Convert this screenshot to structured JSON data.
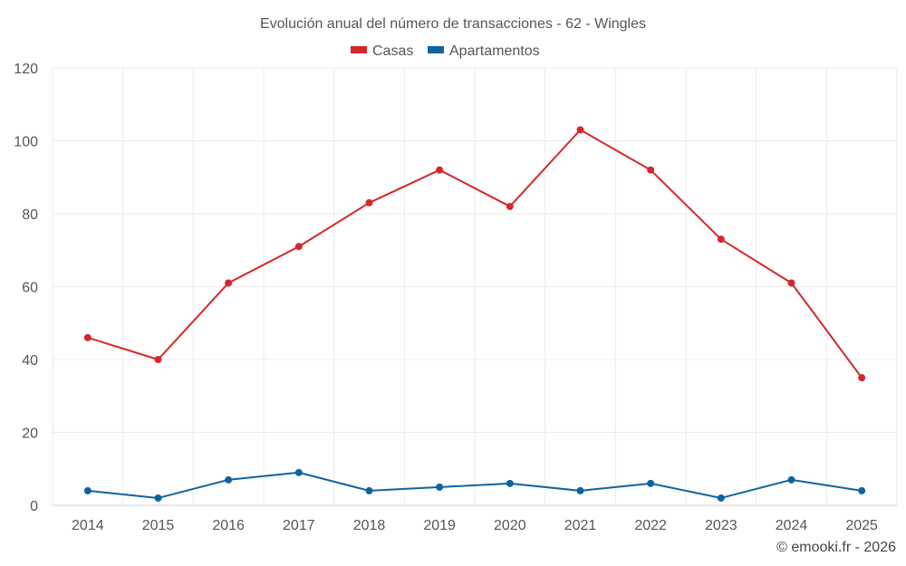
{
  "chart_data": {
    "type": "line",
    "title": "Evolución anual del número de transacciones - 62 - Wingles",
    "xlabel": "",
    "ylabel": "",
    "categories": [
      "2014",
      "2015",
      "2016",
      "2017",
      "2018",
      "2019",
      "2020",
      "2021",
      "2022",
      "2023",
      "2024",
      "2025"
    ],
    "ylim": [
      0,
      120
    ],
    "yticks": [
      0,
      20,
      40,
      60,
      80,
      100,
      120
    ],
    "grid": true,
    "legend_position": "top-center",
    "series": [
      {
        "name": "Casas",
        "color": "#d62728",
        "values": [
          46,
          40,
          61,
          71,
          83,
          92,
          82,
          103,
          92,
          73,
          61,
          35
        ]
      },
      {
        "name": "Apartamentos",
        "color": "#0f64a0",
        "values": [
          4,
          2,
          7,
          9,
          4,
          5,
          6,
          4,
          6,
          2,
          7,
          4
        ]
      }
    ]
  },
  "credit": "© emooki.fr - 2026"
}
